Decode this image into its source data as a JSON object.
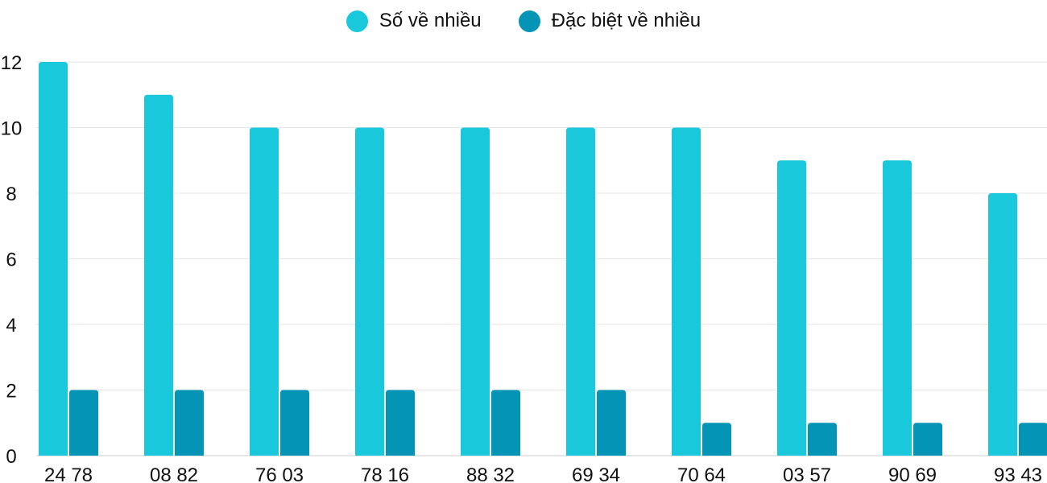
{
  "chart_data": {
    "type": "bar",
    "categories": [
      "24 78",
      "08 82",
      "76 03",
      "78 16",
      "88 32",
      "69 34",
      "70 64",
      "03 57",
      "90 69",
      "93 43"
    ],
    "series": [
      {
        "name": "Số về nhiều",
        "color": "#1ac8db",
        "values": [
          12,
          11,
          10,
          10,
          10,
          10,
          10,
          9,
          9,
          8
        ]
      },
      {
        "name": "Đặc biệt về nhiều",
        "color": "#0494b6",
        "values": [
          2,
          2,
          2,
          2,
          2,
          2,
          1,
          1,
          1,
          1
        ]
      }
    ],
    "yticks": [
      "0",
      "2",
      "4",
      "6",
      "8",
      "10",
      "12"
    ],
    "ylim": [
      0,
      12
    ],
    "grid": true,
    "legend": "top-center"
  }
}
